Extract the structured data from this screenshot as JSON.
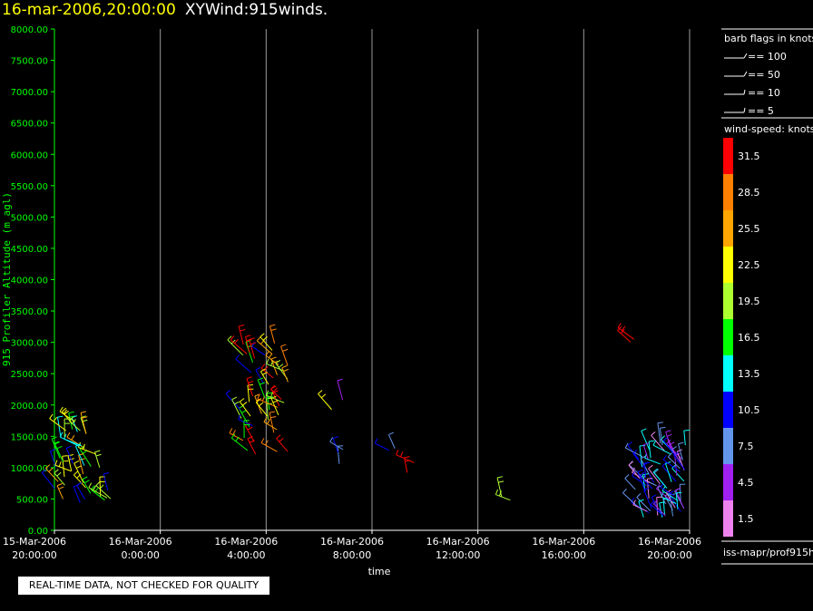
{
  "header": {
    "date": "16-mar-2006,20:00:00",
    "product": "XYWind:915winds."
  },
  "chart_data": {
    "type": "scatter",
    "subtype": "wind-barbs",
    "xlabel": "time",
    "ylabel": "915 Profiler Altitude (m agl)",
    "ylim": [
      0,
      8000
    ],
    "yticks": [
      "0.00",
      "500.00",
      "1000.00",
      "1500.00",
      "2000.00",
      "2500.00",
      "3000.00",
      "3500.00",
      "4000.00",
      "4500.00",
      "5000.00",
      "5500.00",
      "6000.00",
      "6500.00",
      "7000.00",
      "7500.00",
      "8000.00"
    ],
    "xlim_hours": [
      0,
      24
    ],
    "xticks": [
      {
        "hour": 0,
        "date": "15-Mar-2006",
        "time": "20:00:00"
      },
      {
        "hour": 4,
        "date": "16-Mar-2006",
        "time": "0:00:00"
      },
      {
        "hour": 8,
        "date": "16-Mar-2006",
        "time": "4:00:00"
      },
      {
        "hour": 12,
        "date": "16-Mar-2006",
        "time": "8:00:00"
      },
      {
        "hour": 16,
        "date": "16-Mar-2006",
        "time": "12:00:00"
      },
      {
        "hour": 20,
        "date": "16-Mar-2006",
        "time": "16:00:00"
      },
      {
        "hour": 24,
        "date": "16-Mar-2006",
        "time": "20:00:00"
      }
    ],
    "grid_x": true,
    "clusters": [
      {
        "hour": 0.8,
        "alt": [
          300,
          1800
        ],
        "n": 34,
        "speeds": [
          22.5,
          25.5,
          19.5,
          16.5,
          13.5,
          10.5,
          22.5
        ]
      },
      {
        "hour": 2.0,
        "alt": [
          350,
          700
        ],
        "n": 5,
        "speeds": [
          19.5,
          16.5,
          22.5,
          10.5
        ]
      },
      {
        "hour": 7.9,
        "alt": [
          1200,
          3000
        ],
        "n": 46,
        "speeds": [
          31.5,
          28.5,
          25.5,
          22.5,
          19.5,
          16.5,
          10.5,
          31.5
        ]
      },
      {
        "hour": 10.8,
        "alt": [
          1000,
          2100
        ],
        "n": 5,
        "speeds": [
          7.5,
          4.5,
          10.5,
          22.5
        ]
      },
      {
        "hour": 12.8,
        "alt": [
          1250,
          1350
        ],
        "n": 2,
        "speeds": [
          7.5,
          10.5
        ]
      },
      {
        "hour": 13.6,
        "alt": [
          850,
          1100
        ],
        "n": 2,
        "speeds": [
          31.5
        ]
      },
      {
        "hour": 17.1,
        "alt": [
          400,
          600
        ],
        "n": 2,
        "speeds": [
          19.5
        ]
      },
      {
        "hour": 22.1,
        "alt": [
          2950,
          3150
        ],
        "n": 2,
        "speeds": [
          31.5
        ]
      },
      {
        "hour": 22.9,
        "alt": [
          200,
          1400
        ],
        "n": 70,
        "speeds": [
          7.5,
          10.5,
          13.5,
          4.5,
          7.5,
          1.5,
          10.5,
          13.5
        ]
      }
    ],
    "barb_legend": {
      "title": "barb flags in knots",
      "items": [
        "== 100",
        "== 50",
        "== 10",
        "== 5"
      ]
    },
    "speed_legend": {
      "title": "wind-speed: knots",
      "items": [
        {
          "label": "31.5",
          "color": "#ff0000"
        },
        {
          "label": "28.5",
          "color": "#ff7f00"
        },
        {
          "label": "25.5",
          "color": "#ffa500"
        },
        {
          "label": "22.5",
          "color": "#ffff00"
        },
        {
          "label": "19.5",
          "color": "#adff2f"
        },
        {
          "label": "16.5",
          "color": "#00ff00"
        },
        {
          "label": "13.5",
          "color": "#00ffff"
        },
        {
          "label": "10.5",
          "color": "#0000ff"
        },
        {
          "label": "7.5",
          "color": "#6495ed"
        },
        {
          "label": "4.5",
          "color": "#a020f0"
        },
        {
          "label": "1.5",
          "color": "#ee82ee"
        }
      ]
    }
  },
  "footer": {
    "qc_note": "REAL-TIME DATA, NOT CHECKED FOR QUALITY",
    "source": "iss-mapr/prof915h"
  }
}
